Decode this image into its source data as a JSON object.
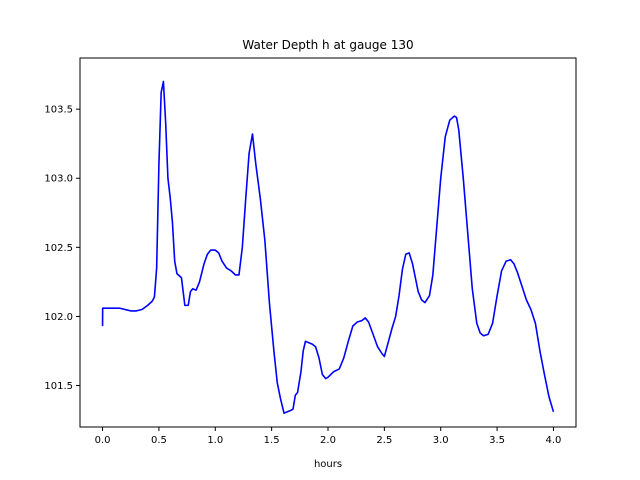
{
  "chart_data": {
    "type": "line",
    "title": "Water Depth h at gauge 130",
    "xlabel": "hours",
    "ylabel": "",
    "xlim": [
      -0.2,
      4.2
    ],
    "ylim": [
      101.2,
      103.87
    ],
    "xticks": [
      0.0,
      0.5,
      1.0,
      1.5,
      2.0,
      2.5,
      3.0,
      3.5,
      4.0
    ],
    "xtick_labels": [
      "0.0",
      "0.5",
      "1.0",
      "1.5",
      "2.0",
      "2.5",
      "3.0",
      "3.5",
      "4.0"
    ],
    "yticks": [
      101.5,
      102.0,
      102.5,
      103.0,
      103.5
    ],
    "ytick_labels": [
      "101.5",
      "102.0",
      "102.5",
      "103.0",
      "103.5"
    ],
    "grid": false,
    "series": [
      {
        "color": "#0000ff",
        "x": [
          0.0,
          0.001,
          0.05,
          0.1,
          0.15,
          0.2,
          0.25,
          0.3,
          0.35,
          0.4,
          0.44,
          0.46,
          0.48,
          0.5,
          0.52,
          0.54,
          0.56,
          0.58,
          0.6,
          0.62,
          0.64,
          0.66,
          0.7,
          0.73,
          0.76,
          0.78,
          0.8,
          0.83,
          0.86,
          0.9,
          0.93,
          0.96,
          1.0,
          1.03,
          1.06,
          1.1,
          1.14,
          1.18,
          1.21,
          1.24,
          1.27,
          1.3,
          1.33,
          1.36,
          1.4,
          1.44,
          1.48,
          1.52,
          1.55,
          1.58,
          1.61,
          1.64,
          1.67,
          1.69,
          1.71,
          1.73,
          1.76,
          1.78,
          1.8,
          1.83,
          1.86,
          1.89,
          1.92,
          1.95,
          1.98,
          2.0,
          2.05,
          2.1,
          2.14,
          2.18,
          2.22,
          2.26,
          2.3,
          2.33,
          2.36,
          2.4,
          2.44,
          2.48,
          2.5,
          2.53,
          2.57,
          2.6,
          2.63,
          2.66,
          2.69,
          2.72,
          2.75,
          2.78,
          2.8,
          2.83,
          2.86,
          2.9,
          2.93,
          2.96,
          3.0,
          3.04,
          3.08,
          3.12,
          3.14,
          3.16,
          3.2,
          3.24,
          3.28,
          3.32,
          3.35,
          3.38,
          3.42,
          3.46,
          3.5,
          3.54,
          3.58,
          3.62,
          3.65,
          3.68,
          3.72,
          3.76,
          3.8,
          3.84,
          3.88,
          3.92,
          3.96,
          4.0
        ],
        "y": [
          101.93,
          102.06,
          102.06,
          102.06,
          102.06,
          102.05,
          102.04,
          102.04,
          102.05,
          102.08,
          102.11,
          102.14,
          102.35,
          103.1,
          103.62,
          103.7,
          103.4,
          103.0,
          102.86,
          102.68,
          102.4,
          102.31,
          102.28,
          102.08,
          102.08,
          102.18,
          102.2,
          102.19,
          102.25,
          102.38,
          102.45,
          102.48,
          102.48,
          102.46,
          102.4,
          102.35,
          102.33,
          102.3,
          102.3,
          102.5,
          102.85,
          103.18,
          103.32,
          103.1,
          102.85,
          102.55,
          102.1,
          101.75,
          101.52,
          101.4,
          101.3,
          101.31,
          101.32,
          101.33,
          101.43,
          101.45,
          101.6,
          101.75,
          101.82,
          101.81,
          101.8,
          101.78,
          101.7,
          101.58,
          101.55,
          101.56,
          101.6,
          101.62,
          101.7,
          101.82,
          101.93,
          101.96,
          101.97,
          101.99,
          101.96,
          101.87,
          101.78,
          101.73,
          101.71,
          101.8,
          101.92,
          102.0,
          102.15,
          102.34,
          102.45,
          102.46,
          102.38,
          102.26,
          102.18,
          102.12,
          102.1,
          102.15,
          102.3,
          102.6,
          103.0,
          103.3,
          103.42,
          103.45,
          103.44,
          103.35,
          103.0,
          102.6,
          102.2,
          101.95,
          101.88,
          101.86,
          101.87,
          101.95,
          102.15,
          102.33,
          102.4,
          102.41,
          102.38,
          102.32,
          102.22,
          102.12,
          102.05,
          101.95,
          101.75,
          101.58,
          101.42,
          101.31
        ]
      }
    ]
  }
}
